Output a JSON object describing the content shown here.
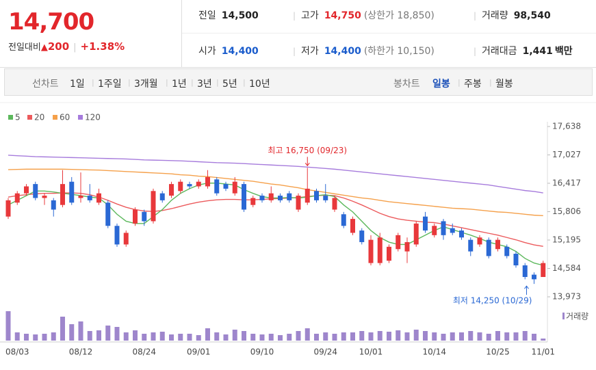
{
  "header": {
    "price": "14,700",
    "change_label": "전일대비",
    "change": "200",
    "change_pct": "+1.38%",
    "info": [
      [
        {
          "label": "전일",
          "value": "14,500",
          "color": "#222"
        },
        {
          "label": "고가",
          "value": "14,750",
          "note": "(상한가 18,850)",
          "color": "#e2262b"
        },
        {
          "label": "거래량",
          "value": "98,540",
          "color": "#222"
        }
      ],
      [
        {
          "label": "시가",
          "value": "14,400",
          "color": "#1a5ccc"
        },
        {
          "label": "저가",
          "value": "14,400",
          "note": "(하한가 10,150)",
          "color": "#1a5ccc"
        },
        {
          "label": "거래대금",
          "value": "1,441",
          "unit": "백만",
          "color": "#222"
        }
      ]
    ]
  },
  "toolbar": {
    "line_label": "선차트",
    "line_periods": [
      "1일",
      "1주일",
      "3개월",
      "1년",
      "3년",
      "5년",
      "10년"
    ],
    "candle_label": "봉차트",
    "candle_periods": [
      "일봉",
      "주봉",
      "월봉"
    ],
    "active": "일봉"
  },
  "chart_data": {
    "type": "candlestick",
    "categories": [
      null,
      "08/03",
      null,
      null,
      null,
      null,
      null,
      null,
      "08/12",
      null,
      null,
      null,
      null,
      null,
      null,
      "08/24",
      null,
      null,
      null,
      null,
      null,
      "09/01",
      null,
      null,
      null,
      null,
      null,
      null,
      "09/10",
      null,
      null,
      null,
      null,
      null,
      null,
      "09/24",
      null,
      null,
      null,
      null,
      "10/01",
      null,
      null,
      null,
      null,
      null,
      null,
      "10/14",
      null,
      null,
      null,
      null,
      null,
      null,
      "10/25",
      null,
      null,
      null,
      null,
      "11/01"
    ],
    "open": [
      15700,
      16000,
      16200,
      16400,
      16100,
      16050,
      15950,
      16450,
      16100,
      16150,
      16000,
      16000,
      15500,
      15100,
      15550,
      15800,
      15600,
      16200,
      16150,
      16250,
      16400,
      16350,
      16350,
      16500,
      16400,
      16200,
      16400,
      15950,
      16150,
      16050,
      16150,
      16200,
      15850,
      16000,
      16250,
      16150,
      15850,
      15750,
      15350,
      15400,
      14700,
      14700,
      14750,
      15000,
      14950,
      15100,
      15700,
      15300,
      15600,
      15450,
      15400,
      15200,
      15100,
      15200,
      15000,
      15050,
      14900,
      14650,
      14450,
      14400
    ],
    "high": [
      16100,
      16250,
      16400,
      16450,
      16200,
      16100,
      16700,
      16550,
      16650,
      16400,
      16300,
      16050,
      15550,
      15400,
      15900,
      15850,
      16300,
      16250,
      16450,
      16500,
      16450,
      16500,
      16700,
      16550,
      16450,
      16550,
      16450,
      16150,
      16200,
      16350,
      16200,
      16250,
      16200,
      16750,
      16300,
      16400,
      16150,
      15800,
      15700,
      15450,
      15300,
      15350,
      15100,
      15350,
      15250,
      15600,
      15800,
      15550,
      15650,
      15550,
      15450,
      15250,
      15300,
      15250,
      15250,
      15100,
      14950,
      14700,
      14500,
      14750
    ],
    "low": [
      15650,
      15950,
      16150,
      16050,
      15950,
      15700,
      15900,
      15950,
      16000,
      16000,
      15950,
      15450,
      15050,
      15050,
      15500,
      15500,
      15550,
      16000,
      16100,
      16200,
      16300,
      16300,
      16300,
      16150,
      16250,
      16150,
      15800,
      15900,
      16000,
      16000,
      16000,
      16000,
      15800,
      15950,
      16000,
      16000,
      15800,
      15450,
      15300,
      15100,
      14650,
      14650,
      14700,
      14950,
      14700,
      15050,
      15350,
      15250,
      15200,
      15300,
      15200,
      14850,
      15050,
      14800,
      14950,
      14800,
      14600,
      14350,
      14250,
      14400
    ],
    "close": [
      16050,
      16200,
      16350,
      16100,
      16150,
      15850,
      16400,
      16000,
      16150,
      16050,
      16200,
      15500,
      15100,
      15350,
      15850,
      15600,
      16250,
      16050,
      16400,
      16450,
      16350,
      16450,
      16550,
      16200,
      16300,
      16450,
      15850,
      16100,
      16050,
      16200,
      16050,
      16050,
      16150,
      16300,
      16050,
      16050,
      16100,
      15500,
      15650,
      15150,
      15200,
      15250,
      15050,
      15300,
      15150,
      15550,
      15400,
      15500,
      15300,
      15350,
      15250,
      14950,
      15250,
      14850,
      15200,
      14850,
      14650,
      14400,
      14350,
      14700
    ],
    "up_color": "#e8383b",
    "down_color": "#2a68d4",
    "series": [
      {
        "name": "5",
        "color": "#5cb85c",
        "values": [
          15950,
          16050,
          16150,
          16250,
          16250,
          16230,
          16200,
          16180,
          16150,
          16120,
          16100,
          15950,
          15750,
          15600,
          15550,
          15550,
          15700,
          15850,
          16050,
          16200,
          16300,
          16380,
          16420,
          16420,
          16400,
          16380,
          16280,
          16200,
          16130,
          16100,
          16100,
          16110,
          16100,
          16120,
          16150,
          16170,
          16130,
          15950,
          15800,
          15600,
          15400,
          15250,
          15150,
          15100,
          15100,
          15200,
          15300,
          15400,
          15480,
          15420,
          15360,
          15300,
          15230,
          15150,
          15100,
          15050,
          14950,
          14800,
          14700,
          14650
        ]
      },
      {
        "name": "20",
        "color": "#ec5a5c",
        "values": [
          16120,
          16150,
          16170,
          16190,
          16200,
          16200,
          16210,
          16210,
          16200,
          16170,
          16120,
          16050,
          15970,
          15900,
          15850,
          15820,
          15810,
          15830,
          15870,
          15920,
          15970,
          16010,
          16040,
          16060,
          16070,
          16070,
          16060,
          16060,
          16070,
          16080,
          16090,
          16100,
          16110,
          16130,
          16150,
          16160,
          16150,
          16100,
          16030,
          15950,
          15860,
          15770,
          15700,
          15650,
          15620,
          15600,
          15580,
          15570,
          15540,
          15500,
          15460,
          15420,
          15380,
          15340,
          15300,
          15250,
          15200,
          15140,
          15090,
          15060
        ]
      },
      {
        "name": "60",
        "color": "#f5a04a",
        "values": [
          16710,
          16715,
          16720,
          16720,
          16720,
          16720,
          16720,
          16715,
          16710,
          16705,
          16700,
          16690,
          16680,
          16670,
          16660,
          16650,
          16640,
          16630,
          16620,
          16600,
          16590,
          16570,
          16560,
          16540,
          16520,
          16500,
          16480,
          16460,
          16430,
          16400,
          16380,
          16350,
          16320,
          16280,
          16250,
          16220,
          16190,
          16160,
          16130,
          16100,
          16080,
          16050,
          16020,
          16000,
          15980,
          15960,
          15940,
          15920,
          15900,
          15880,
          15870,
          15860,
          15840,
          15820,
          15800,
          15790,
          15770,
          15750,
          15730,
          15720
        ]
      },
      {
        "name": "120",
        "color": "#a67bdc",
        "values": [
          17020,
          17010,
          17000,
          16990,
          16985,
          16980,
          16975,
          16970,
          16965,
          16960,
          16955,
          16950,
          16945,
          16940,
          16930,
          16920,
          16915,
          16910,
          16905,
          16900,
          16890,
          16880,
          16870,
          16860,
          16855,
          16850,
          16840,
          16830,
          16820,
          16810,
          16800,
          16790,
          16780,
          16765,
          16750,
          16735,
          16720,
          16700,
          16680,
          16660,
          16640,
          16620,
          16600,
          16580,
          16560,
          16540,
          16520,
          16500,
          16480,
          16460,
          16440,
          16420,
          16400,
          16380,
          16350,
          16320,
          16290,
          16260,
          16240,
          16210
        ]
      }
    ],
    "volume": [
      1419000,
      396000,
      330000,
      297000,
      330000,
      396000,
      1155000,
      792000,
      924000,
      462000,
      495000,
      726000,
      660000,
      396000,
      495000,
      330000,
      396000,
      429000,
      297000,
      330000,
      330000,
      264000,
      594000,
      396000,
      297000,
      528000,
      462000,
      330000,
      297000,
      330000,
      264000,
      330000,
      462000,
      594000,
      330000,
      396000,
      330000,
      396000,
      396000,
      462000,
      396000,
      462000,
      429000,
      495000,
      396000,
      528000,
      462000,
      396000,
      330000,
      396000,
      396000,
      462000,
      396000,
      330000,
      462000,
      396000,
      396000,
      462000,
      330000,
      98540
    ],
    "volume_label": "거래량",
    "volume_color": "#9e86cc",
    "ylim": [
      13973,
      17638
    ],
    "yticks": [
      {
        "value": 13973,
        "label": "13,973"
      },
      {
        "value": 14584,
        "label": "14,584"
      },
      {
        "value": 15195,
        "label": "15,195"
      },
      {
        "value": 15806,
        "label": "15,806"
      },
      {
        "value": 16417,
        "label": "16,417"
      },
      {
        "value": 17027,
        "label": "17,027"
      },
      {
        "value": 17638,
        "label": "17,638"
      }
    ],
    "grid": false,
    "annotations": [
      {
        "text": "최고 16,750 (09/23)",
        "value": 16750,
        "kind": "high",
        "color": "#e2262b"
      },
      {
        "text": "최저 14,250 (10/29)",
        "value": 14250,
        "kind": "low",
        "color": "#2a68d4"
      }
    ]
  }
}
